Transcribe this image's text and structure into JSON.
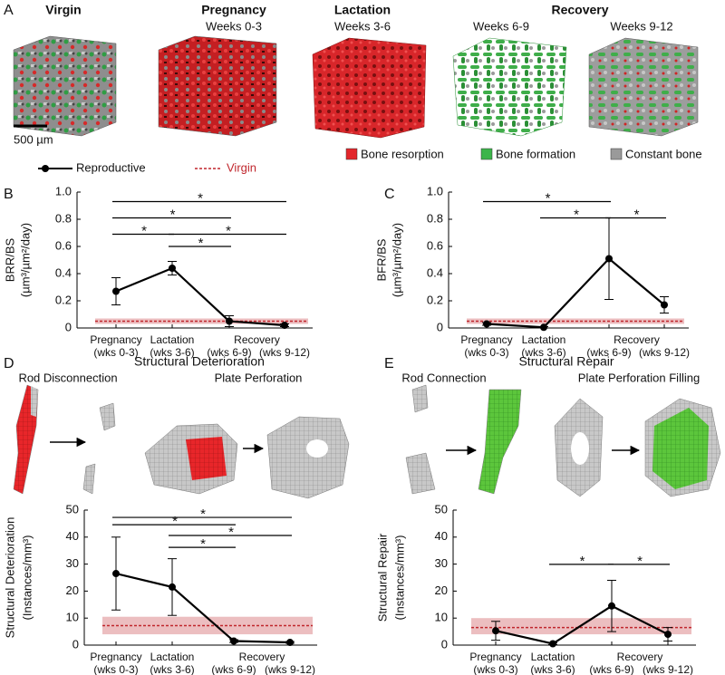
{
  "panel_a": {
    "panel": "A",
    "headings": [
      {
        "title": "Virgin"
      },
      {
        "title": "Pregnancy",
        "weeks": [
          "Weeks 0-3"
        ]
      },
      {
        "title": "Lactation",
        "weeks": [
          "Weeks 3-6"
        ]
      },
      {
        "title": "Recovery",
        "weeks": [
          "Weeks 6-9",
          "Weeks 9-12"
        ]
      }
    ],
    "scale_bar": "500 µm",
    "legend": [
      {
        "name": "Bone resorption",
        "color": "#e3262b"
      },
      {
        "name": "Bone formation",
        "color": "#3cb54a"
      },
      {
        "name": "Constant bone",
        "color": "#9a9a9a"
      }
    ]
  },
  "legend": [
    {
      "name": "Reproductive",
      "color": "#000000"
    },
    {
      "name": "Virgin",
      "color": "#c0272d"
    }
  ],
  "chart_data": [
    {
      "type": "line",
      "panel": "B",
      "ylabel": [
        "BRR/BS",
        "(µm³/µm²/day)"
      ],
      "category_groups": [
        {
          "label": "Pregnancy",
          "span": [
            0,
            0
          ]
        },
        {
          "label": "Lactation",
          "span": [
            1,
            1
          ]
        },
        {
          "label": "Recovery",
          "span": [
            2,
            3
          ]
        }
      ],
      "categories": [
        "(wks 0-3)",
        "(wks 3-6)",
        "(wks 6-9)",
        "(wks 9-12)"
      ],
      "values": [
        0.27,
        0.44,
        0.05,
        0.02
      ],
      "errors": [
        0.1,
        0.05,
        0.04,
        0.01
      ],
      "virgin_mean": 0.05,
      "virgin_band": [
        0.03,
        0.07
      ],
      "ylim": [
        0,
        1
      ],
      "yticks": [
        0,
        0.2,
        0.4,
        0.6,
        0.8,
        {
          "value": 1,
          "label": "1.0"
        }
      ],
      "brackets": [
        {
          "from": 0,
          "to": 3,
          "y": 0.93,
          "label": "*"
        },
        {
          "from": 0,
          "to": 2,
          "y": 0.81,
          "label": "*"
        },
        {
          "from": 0,
          "to": 1,
          "y": 0.69,
          "label": "*"
        },
        {
          "from": 1,
          "to": 3,
          "y": 0.69,
          "label": "*"
        },
        {
          "from": 1,
          "to": 2,
          "y": 0.6,
          "label": "*"
        }
      ]
    },
    {
      "type": "line",
      "panel": "C",
      "ylabel": [
        "BFR/BS",
        "(µm³/µm²/day)"
      ],
      "category_groups": [
        {
          "label": "Pregnancy",
          "span": [
            0,
            0
          ]
        },
        {
          "label": "Lactation",
          "span": [
            1,
            1
          ]
        },
        {
          "label": "Recovery",
          "span": [
            2,
            3
          ]
        }
      ],
      "categories": [
        "(wks 0-3)",
        "(wks 3-6)",
        "(wks 6-9)",
        "(wks 9-12)"
      ],
      "values": [
        0.03,
        0.005,
        0.51,
        0.17
      ],
      "errors": [
        0.01,
        0.005,
        0.3,
        0.06
      ],
      "virgin_mean": 0.05,
      "virgin_band": [
        0.03,
        0.07
      ],
      "ylim": [
        0,
        1
      ],
      "yticks": [
        0,
        0.2,
        0.4,
        0.6,
        0.8,
        {
          "value": 1,
          "label": "1.0"
        }
      ],
      "brackets": [
        {
          "from": 0,
          "to": 2,
          "y": 0.93,
          "label": "*"
        },
        {
          "from": 1,
          "to": 2,
          "y": 0.81,
          "label": "*"
        },
        {
          "from": 2,
          "to": 3,
          "y": 0.81,
          "label": "*"
        }
      ]
    },
    {
      "type": "line",
      "panel": "D",
      "title": "Structural Deterioration",
      "subtitles": [
        "Rod Disconnection",
        "Plate Perforation"
      ],
      "ylabel": [
        "Structural Deterioration",
        "(Instances/mm³)"
      ],
      "category_groups": [
        {
          "label": "Pregnancy",
          "span": [
            0,
            0
          ]
        },
        {
          "label": "Lactation",
          "span": [
            1,
            1
          ]
        },
        {
          "label": "Recovery",
          "span": [
            2,
            3
          ]
        }
      ],
      "categories": [
        "(wks 0-3)",
        "(wks 3-6)",
        "(wks 6-9)",
        "(wks 9-12)"
      ],
      "values": [
        26.5,
        21.5,
        1.5,
        1
      ],
      "errors": [
        13.5,
        10.5,
        0.5,
        0.3
      ],
      "virgin_mean": 7.2,
      "virgin_band": [
        4,
        10.5
      ],
      "ylim": [
        0,
        50
      ],
      "yticks": [
        0,
        10,
        20,
        30,
        40,
        50
      ],
      "brackets": [
        {
          "from": 0,
          "to": 3,
          "y": 47.3,
          "label": "*"
        },
        {
          "from": 0,
          "to": 2,
          "y": 44.6,
          "label": "*"
        },
        {
          "from": 1,
          "to": 3,
          "y": 40.6,
          "label": "*"
        },
        {
          "from": 1,
          "to": 2,
          "y": 36.2,
          "label": "*"
        }
      ]
    },
    {
      "type": "line",
      "panel": "E",
      "title": "Structural Repair",
      "subtitles": [
        "Rod Connection",
        "Plate Perforation Filling"
      ],
      "ylabel": [
        "Structural Repair",
        "(Instances/mm³)"
      ],
      "category_groups": [
        {
          "label": "Pregnancy",
          "span": [
            0,
            0
          ]
        },
        {
          "label": "Lactation",
          "span": [
            1,
            1
          ]
        },
        {
          "label": "Recovery",
          "span": [
            2,
            3
          ]
        }
      ],
      "categories": [
        "(wks 0-3)",
        "(wks 3-6)",
        "(wks 6-9)",
        "(wks 9-12)"
      ],
      "values": [
        5.3,
        0.5,
        14.5,
        4
      ],
      "errors": [
        3.5,
        0.3,
        9.5,
        2.5
      ],
      "virgin_mean": 6.5,
      "virgin_band": [
        4,
        10
      ],
      "ylim": [
        0,
        50
      ],
      "yticks": [
        0,
        10,
        20,
        30,
        40,
        50
      ],
      "brackets": [
        {
          "from": 1,
          "to": 2,
          "y": 29.9,
          "label": "*"
        },
        {
          "from": 2,
          "to": 3,
          "y": 29.9,
          "label": "*"
        }
      ]
    }
  ]
}
